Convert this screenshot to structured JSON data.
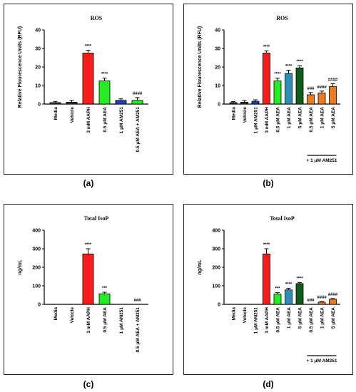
{
  "panel_labels": [
    "(a)",
    "(b)",
    "(c)",
    "(d)"
  ],
  "chart_data": [
    {
      "type": "bar",
      "title": "ROS",
      "ylabel": "Relative Flourescence Units (RFU)",
      "ylim": [
        0,
        40
      ],
      "yticks": [
        0,
        10,
        20,
        30,
        40
      ],
      "categories": [
        "Media",
        "Vehicle",
        "3 mM AAPH",
        "0.5 μM AEA",
        "1 μM AM251",
        "0.5 μM AEA + AM251"
      ],
      "values": [
        0.8,
        1.0,
        27.5,
        12.5,
        2.0,
        2.0
      ],
      "errors": [
        0.6,
        1.0,
        1.5,
        1.5,
        0.8,
        1.5
      ],
      "colors": [
        "#3a3a3a",
        "#3a3a3a",
        "#ff1a1a",
        "#22ee22",
        "#1f3fbf",
        "#22ee22"
      ],
      "annotations": [
        "",
        "",
        "****",
        "****",
        "",
        "####"
      ],
      "group_label": ""
    },
    {
      "type": "bar",
      "title": "ROS",
      "ylabel": "Relative Flourescence Units (RFU)",
      "ylim": [
        0,
        40
      ],
      "yticks": [
        0,
        10,
        20,
        30,
        40
      ],
      "categories": [
        "Media",
        "Vehicle",
        "1 μM AM251",
        "3 mM AAPH",
        "0.5 μM AEA",
        "1 μM AEA",
        "5 μM AEA",
        "0.5 μM AEA",
        "1 μM AEA",
        "5 μM AEA"
      ],
      "values": [
        0.8,
        1.0,
        1.5,
        27.5,
        12.5,
        16.5,
        19.5,
        5.0,
        6.0,
        9.5
      ],
      "errors": [
        0.5,
        0.9,
        0.8,
        1.2,
        1.5,
        1.8,
        1.2,
        1.2,
        1.0,
        1.5
      ],
      "colors": [
        "#3a3a3a",
        "#3a3a3a",
        "#1f3fbf",
        "#ff1a1a",
        "#22ee22",
        "#2a8fb8",
        "#0d5e16",
        "#f07a1e",
        "#f07a1e",
        "#f07a1e"
      ],
      "annotations": [
        "",
        "",
        "",
        "****",
        "****",
        "****",
        "****",
        "###",
        "####",
        "####"
      ],
      "group_label": "+ 1 μM AM251"
    },
    {
      "type": "bar",
      "title": "Total IsoP",
      "ylabel": "ng/mL",
      "ylim": [
        0,
        400
      ],
      "yticks": [
        0,
        100,
        200,
        300,
        400
      ],
      "categories": [
        "Media",
        "Vehicle",
        "3 mM AAPH",
        "0.5 μM AEA",
        "1 μM AM251",
        "0.5 μM AEA + AM251"
      ],
      "values": [
        0,
        0,
        272,
        57,
        0,
        0
      ],
      "errors": [
        0,
        0,
        28,
        8,
        0,
        0
      ],
      "colors": [
        "#3a3a3a",
        "#3a3a3a",
        "#ff1a1a",
        "#22ee22",
        "#1f3fbf",
        "#22ee22"
      ],
      "annotations": [
        "",
        "",
        "****",
        "***",
        "",
        "###"
      ],
      "group_label": ""
    },
    {
      "type": "bar",
      "title": "Total IsoP",
      "ylabel": "ng/mL",
      "ylim": [
        0,
        400
      ],
      "yticks": [
        0,
        100,
        200,
        300,
        400
      ],
      "categories": [
        "Media",
        "Vehicle",
        "1 μM AM251",
        "3 mM AAPH",
        "0.5 μM AEA",
        "1 μM AEA",
        "5 μM AEA",
        "0.5 μM AEA",
        "1 μM AEA",
        "5 μM AEA"
      ],
      "values": [
        0,
        0,
        0,
        272,
        55,
        78,
        112,
        0,
        12,
        28
      ],
      "errors": [
        0,
        0,
        0,
        28,
        8,
        8,
        6,
        0,
        3,
        3
      ],
      "colors": [
        "#3a3a3a",
        "#3a3a3a",
        "#1f3fbf",
        "#ff1a1a",
        "#22ee22",
        "#2a8fb8",
        "#0d5e16",
        "#f07a1e",
        "#f07a1e",
        "#f07a1e"
      ],
      "annotations": [
        "",
        "",
        "",
        "****",
        "***",
        "****",
        "****",
        "###",
        "####",
        "####"
      ],
      "group_label": "+ 1 μM AM251"
    }
  ]
}
